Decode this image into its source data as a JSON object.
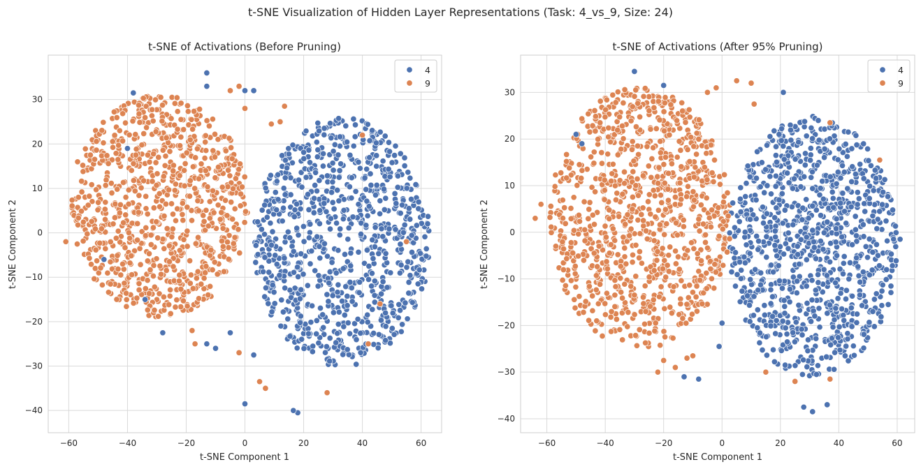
{
  "figure": {
    "suptitle": "t-SNE Visualization of Hidden Layer Representations (Task: 4_vs_9, Size: 24)"
  },
  "chart_data": [
    {
      "type": "scatter",
      "title": "t-SNE of Activations (Before Pruning)",
      "xlabel": "t-SNE Component 1",
      "ylabel": "t-SNE Component 2",
      "xlim": [
        -67,
        67
      ],
      "ylim": [
        -45,
        40
      ],
      "xticks": [
        -60,
        -40,
        -20,
        0,
        20,
        40,
        60
      ],
      "yticks": [
        -40,
        -30,
        -20,
        -10,
        0,
        10,
        20,
        30
      ],
      "grid": true,
      "legend": {
        "placement": "top-right",
        "entries": [
          "4",
          "9"
        ]
      },
      "series": [
        {
          "name": "4",
          "color": "#4c72b0",
          "region": {
            "cx": 33,
            "cy": -2,
            "rx": 30,
            "ry": 28
          },
          "count": 900,
          "points": [
            [
              -13,
              36
            ],
            [
              -38,
              31.5
            ],
            [
              0,
              32
            ],
            [
              -13,
              33
            ],
            [
              3,
              32
            ],
            [
              18,
              -40.5
            ],
            [
              16.5,
              -40
            ],
            [
              0,
              -38.5
            ],
            [
              -28,
              -22.5
            ],
            [
              -10,
              -26
            ],
            [
              -13,
              -25
            ],
            [
              3,
              -27.5
            ],
            [
              -5,
              -22.5
            ],
            [
              -40,
              19
            ],
            [
              -48,
              -6
            ],
            [
              -34,
              -15
            ]
          ]
        },
        {
          "name": "9",
          "color": "#dd8452",
          "region": {
            "cx": -29,
            "cy": 6,
            "rx": 30,
            "ry": 25
          },
          "count": 900,
          "points": [
            [
              -61,
              -2
            ],
            [
              -57,
              16
            ],
            [
              13.5,
              28.5
            ],
            [
              12,
              25
            ],
            [
              9,
              24.5
            ],
            [
              5,
              -33.5
            ],
            [
              7,
              -35
            ],
            [
              28,
              -36
            ],
            [
              42,
              -25
            ],
            [
              55,
              -2
            ],
            [
              40,
              22
            ],
            [
              46,
              -16
            ],
            [
              -2,
              -27
            ],
            [
              -2,
              33
            ],
            [
              -5,
              32
            ],
            [
              0,
              28
            ],
            [
              -18,
              -22
            ],
            [
              -17,
              -25
            ]
          ]
        }
      ]
    },
    {
      "type": "scatter",
      "title": "t-SNE of Activations (After 95% Pruning)",
      "xlabel": "t-SNE Component 1",
      "ylabel": "t-SNE Component 2",
      "xlim": [
        -69,
        66
      ],
      "ylim": [
        -43,
        38
      ],
      "xticks": [
        -60,
        -40,
        -20,
        0,
        20,
        40,
        60
      ],
      "yticks": [
        -40,
        -30,
        -20,
        -10,
        0,
        10,
        20,
        30
      ],
      "grid": true,
      "legend": {
        "placement": "top-right",
        "entries": [
          "4",
          "9"
        ]
      },
      "series": [
        {
          "name": "4",
          "color": "#4c72b0",
          "region": {
            "cx": 31,
            "cy": -3,
            "rx": 29,
            "ry": 28
          },
          "count": 1000,
          "points": [
            [
              -30,
              34.5
            ],
            [
              21,
              30
            ],
            [
              -20,
              31.5
            ],
            [
              -13,
              -31
            ],
            [
              -8,
              -31.5
            ],
            [
              31,
              -38.5
            ],
            [
              28,
              -37.5
            ],
            [
              36,
              -37
            ],
            [
              0,
              -19.5
            ],
            [
              -1,
              -24.5
            ],
            [
              61,
              -1.5
            ],
            [
              -48,
              19
            ],
            [
              -50,
              21
            ]
          ]
        },
        {
          "name": "9",
          "color": "#dd8452",
          "region": {
            "cx": -28,
            "cy": 3,
            "rx": 31,
            "ry": 28
          },
          "count": 1000,
          "points": [
            [
              -64,
              3
            ],
            [
              -62,
              6
            ],
            [
              10,
              32
            ],
            [
              -2,
              31
            ],
            [
              -5,
              30
            ],
            [
              5,
              32.5
            ],
            [
              37,
              -31.5
            ],
            [
              25,
              -32
            ],
            [
              15,
              -30
            ],
            [
              54,
              15.5
            ],
            [
              37,
              23.5
            ],
            [
              11,
              27.5
            ],
            [
              -22,
              -30
            ],
            [
              -12,
              -27
            ],
            [
              -16,
              -29
            ],
            [
              -20,
              -27.5
            ],
            [
              -10,
              -26.5
            ]
          ]
        }
      ]
    }
  ]
}
